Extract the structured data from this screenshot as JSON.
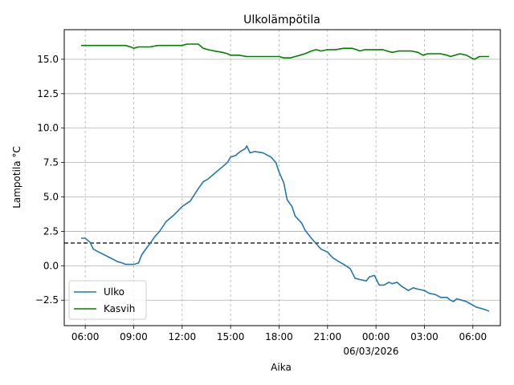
{
  "chart_data": {
    "type": "line",
    "title": "Ulkolämpötila",
    "xlabel": "Aika",
    "ylabel": "Lampotila °C",
    "date_label": "06/03/2026",
    "x_unit": "hours",
    "xlim": [
      4.7,
      31.7
    ],
    "ylim": [
      -4.35,
      17.15
    ],
    "x_ticks": [
      {
        "x": 6,
        "label": "06:00"
      },
      {
        "x": 9,
        "label": "09:00"
      },
      {
        "x": 12,
        "label": "12:00"
      },
      {
        "x": 15,
        "label": "15:00"
      },
      {
        "x": 18,
        "label": "18:00"
      },
      {
        "x": 21,
        "label": "21:00"
      },
      {
        "x": 24,
        "label": "00:00"
      },
      {
        "x": 27,
        "label": "03:00"
      },
      {
        "x": 30,
        "label": "06:00"
      }
    ],
    "y_ticks": [
      {
        "y": -2.5,
        "label": "−2.5"
      },
      {
        "y": 0,
        "label": "0.0"
      },
      {
        "y": 2.5,
        "label": "2.5"
      },
      {
        "y": 5,
        "label": "5.0"
      },
      {
        "y": 7.5,
        "label": "7.5"
      },
      {
        "y": 10,
        "label": "10.0"
      },
      {
        "y": 12.5,
        "label": "12.5"
      },
      {
        "y": 15,
        "label": "15.0"
      }
    ],
    "grid": true,
    "reference_line": {
      "y": 1.65,
      "style": "dashed",
      "color": "#000000"
    },
    "legend_position": "lower-left",
    "series": [
      {
        "name": "Ulko",
        "color": "#1f77b4",
        "points": [
          [
            5.75,
            2.0
          ],
          [
            6.0,
            2.0
          ],
          [
            6.3,
            1.7
          ],
          [
            6.5,
            1.2
          ],
          [
            7.0,
            0.9
          ],
          [
            7.5,
            0.6
          ],
          [
            8.0,
            0.3
          ],
          [
            8.3,
            0.2
          ],
          [
            8.5,
            0.1
          ],
          [
            9.0,
            0.1
          ],
          [
            9.3,
            0.2
          ],
          [
            9.5,
            0.8
          ],
          [
            9.8,
            1.3
          ],
          [
            10.0,
            1.6
          ],
          [
            10.3,
            2.1
          ],
          [
            10.6,
            2.5
          ],
          [
            11.0,
            3.2
          ],
          [
            11.5,
            3.7
          ],
          [
            12.0,
            4.3
          ],
          [
            12.5,
            4.7
          ],
          [
            13.0,
            5.6
          ],
          [
            13.3,
            6.1
          ],
          [
            13.6,
            6.3
          ],
          [
            14.0,
            6.7
          ],
          [
            14.5,
            7.2
          ],
          [
            14.8,
            7.5
          ],
          [
            15.0,
            7.9
          ],
          [
            15.3,
            8.0
          ],
          [
            15.6,
            8.3
          ],
          [
            15.9,
            8.5
          ],
          [
            16.0,
            8.7
          ],
          [
            16.2,
            8.2
          ],
          [
            16.5,
            8.3
          ],
          [
            17.0,
            8.2
          ],
          [
            17.5,
            7.9
          ],
          [
            17.8,
            7.5
          ],
          [
            18.0,
            6.8
          ],
          [
            18.3,
            6.0
          ],
          [
            18.5,
            4.8
          ],
          [
            18.8,
            4.3
          ],
          [
            19.0,
            3.6
          ],
          [
            19.4,
            3.1
          ],
          [
            19.6,
            2.6
          ],
          [
            20.0,
            2.0
          ],
          [
            20.3,
            1.6
          ],
          [
            20.6,
            1.2
          ],
          [
            21.0,
            1.0
          ],
          [
            21.3,
            0.6
          ],
          [
            21.7,
            0.3
          ],
          [
            22.0,
            0.1
          ],
          [
            22.4,
            -0.2
          ],
          [
            22.7,
            -0.9
          ],
          [
            23.0,
            -1.0
          ],
          [
            23.4,
            -1.1
          ],
          [
            23.6,
            -0.8
          ],
          [
            23.9,
            -0.7
          ],
          [
            24.2,
            -1.4
          ],
          [
            24.5,
            -1.4
          ],
          [
            24.8,
            -1.2
          ],
          [
            25.0,
            -1.3
          ],
          [
            25.3,
            -1.2
          ],
          [
            25.6,
            -1.5
          ],
          [
            26.0,
            -1.8
          ],
          [
            26.3,
            -1.6
          ],
          [
            26.6,
            -1.7
          ],
          [
            27.0,
            -1.8
          ],
          [
            27.3,
            -2.0
          ],
          [
            27.7,
            -2.1
          ],
          [
            28.0,
            -2.3
          ],
          [
            28.4,
            -2.3
          ],
          [
            28.6,
            -2.5
          ],
          [
            28.8,
            -2.6
          ],
          [
            29.0,
            -2.4
          ],
          [
            29.3,
            -2.5
          ],
          [
            29.6,
            -2.6
          ],
          [
            29.9,
            -2.8
          ],
          [
            30.2,
            -3.0
          ],
          [
            30.5,
            -3.1
          ],
          [
            30.8,
            -3.2
          ],
          [
            31.0,
            -3.3
          ]
        ]
      },
      {
        "name": "Kasvih",
        "color": "#008000",
        "points": [
          [
            5.75,
            16.0
          ],
          [
            6.5,
            16.0
          ],
          [
            7.0,
            16.0
          ],
          [
            7.5,
            16.0
          ],
          [
            8.0,
            16.0
          ],
          [
            8.5,
            16.0
          ],
          [
            8.8,
            15.9
          ],
          [
            9.0,
            15.8
          ],
          [
            9.3,
            15.9
          ],
          [
            9.6,
            15.9
          ],
          [
            10.0,
            15.9
          ],
          [
            10.5,
            16.0
          ],
          [
            10.8,
            16.0
          ],
          [
            11.0,
            16.0
          ],
          [
            11.5,
            16.0
          ],
          [
            12.0,
            16.0
          ],
          [
            12.3,
            16.1
          ],
          [
            12.6,
            16.1
          ],
          [
            13.0,
            16.1
          ],
          [
            13.3,
            15.8
          ],
          [
            13.6,
            15.7
          ],
          [
            14.0,
            15.6
          ],
          [
            14.5,
            15.5
          ],
          [
            14.8,
            15.4
          ],
          [
            15.0,
            15.3
          ],
          [
            15.5,
            15.3
          ],
          [
            16.0,
            15.2
          ],
          [
            16.5,
            15.2
          ],
          [
            17.0,
            15.2
          ],
          [
            17.5,
            15.2
          ],
          [
            18.0,
            15.2
          ],
          [
            18.3,
            15.1
          ],
          [
            18.7,
            15.1
          ],
          [
            19.0,
            15.2
          ],
          [
            19.3,
            15.3
          ],
          [
            19.6,
            15.4
          ],
          [
            20.0,
            15.6
          ],
          [
            20.3,
            15.7
          ],
          [
            20.6,
            15.6
          ],
          [
            21.0,
            15.7
          ],
          [
            21.5,
            15.7
          ],
          [
            22.0,
            15.8
          ],
          [
            22.5,
            15.8
          ],
          [
            22.8,
            15.7
          ],
          [
            23.0,
            15.6
          ],
          [
            23.3,
            15.7
          ],
          [
            23.7,
            15.7
          ],
          [
            24.0,
            15.7
          ],
          [
            24.4,
            15.7
          ],
          [
            24.7,
            15.6
          ],
          [
            25.0,
            15.5
          ],
          [
            25.4,
            15.6
          ],
          [
            25.8,
            15.6
          ],
          [
            26.2,
            15.6
          ],
          [
            26.6,
            15.5
          ],
          [
            26.9,
            15.3
          ],
          [
            27.2,
            15.4
          ],
          [
            27.5,
            15.4
          ],
          [
            28.0,
            15.4
          ],
          [
            28.4,
            15.3
          ],
          [
            28.6,
            15.2
          ],
          [
            28.9,
            15.3
          ],
          [
            29.2,
            15.4
          ],
          [
            29.6,
            15.3
          ],
          [
            29.9,
            15.1
          ],
          [
            30.1,
            15.0
          ],
          [
            30.4,
            15.2
          ],
          [
            30.7,
            15.2
          ],
          [
            31.0,
            15.2
          ]
        ]
      }
    ]
  }
}
